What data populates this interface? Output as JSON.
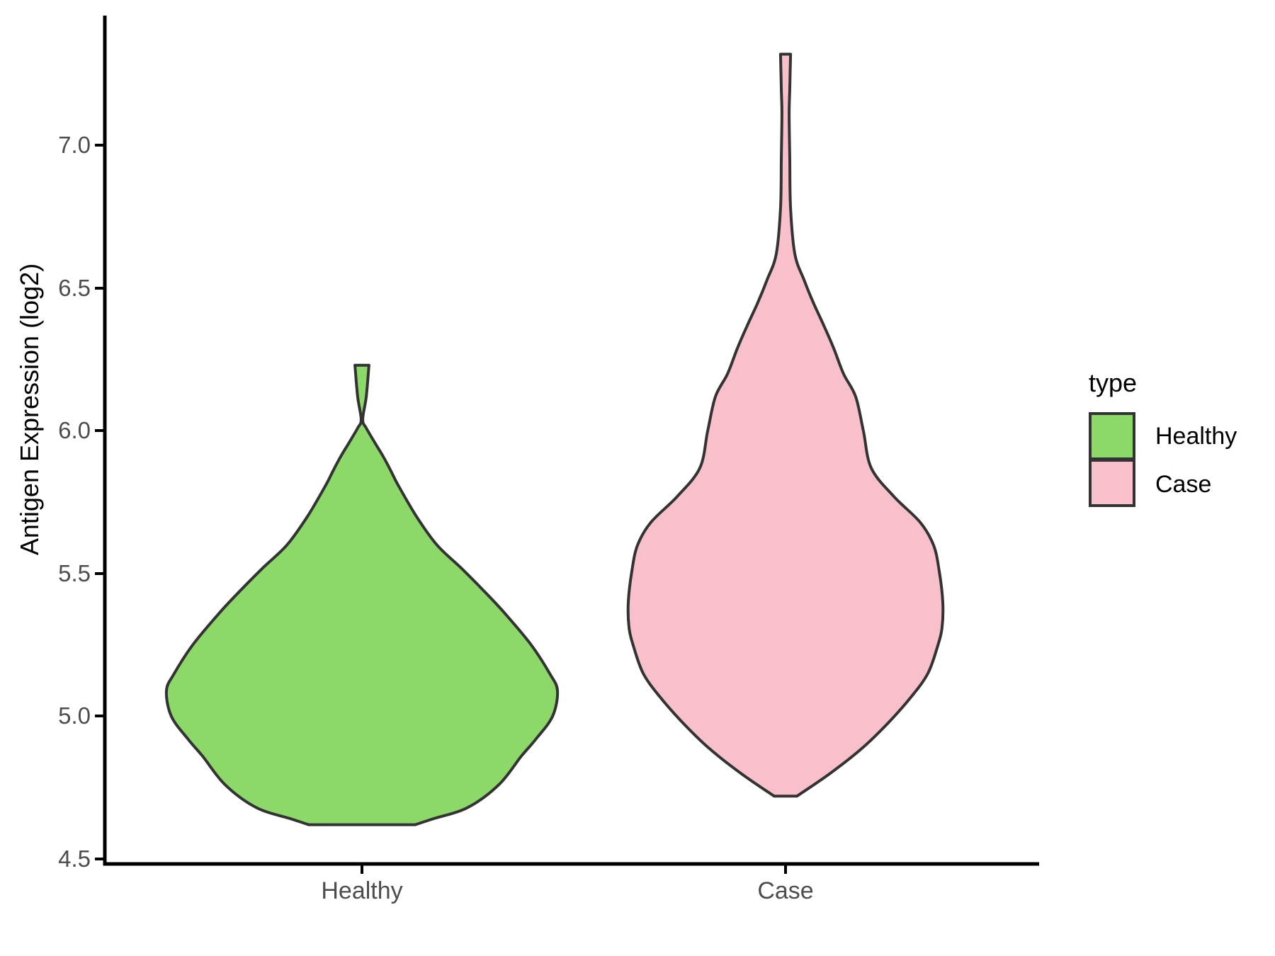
{
  "axes": {
    "y_tick_labels": [
      "7.0",
      "6.5",
      "6.0",
      "5.5",
      "5.0",
      "4.5"
    ],
    "x_tick_labels": [
      "Healthy",
      "Case"
    ],
    "y_title": "Antigen Expression (log2)",
    "text_color": "#4d4d4d",
    "axis_line_color": "#000000"
  },
  "legend": {
    "title": "type",
    "entries": [
      {
        "label": "Healthy",
        "color": "#8CD969"
      },
      {
        "label": "Case",
        "color": "#F8C0CB"
      }
    ]
  },
  "chart_data": {
    "type": "violin",
    "title": "",
    "xlabel": "",
    "ylabel": "Antigen Expression (log2)",
    "categories": [
      "Healthy",
      "Case"
    ],
    "legend_title": "type",
    "legend_position": "right",
    "ylim": [
      4.48,
      7.46
    ],
    "y_axis_ticks": [
      4.5,
      5.0,
      5.5,
      6.0,
      6.5,
      7.0
    ],
    "grid": false,
    "series": [
      {
        "name": "Healthy",
        "fill": "#8CD969",
        "outline": "#333333",
        "min": 4.62,
        "max": 6.23,
        "mode": 5.09,
        "profile": [
          [
            6.23,
            0.036
          ],
          [
            6.12,
            0.022
          ],
          [
            6.04,
            0.004
          ],
          [
            6.01,
            0.022
          ],
          [
            5.96,
            0.065
          ],
          [
            5.91,
            0.109
          ],
          [
            5.86,
            0.148
          ],
          [
            5.81,
            0.185
          ],
          [
            5.7,
            0.279
          ],
          [
            5.6,
            0.384
          ],
          [
            5.52,
            0.507
          ],
          [
            5.44,
            0.623
          ],
          [
            5.36,
            0.732
          ],
          [
            5.25,
            0.866
          ],
          [
            5.15,
            0.96
          ],
          [
            5.09,
            1.0
          ],
          [
            5.0,
            0.975
          ],
          [
            4.92,
            0.89
          ],
          [
            4.86,
            0.815
          ],
          [
            4.76,
            0.7
          ],
          [
            4.68,
            0.54
          ],
          [
            4.64,
            0.36
          ],
          [
            4.62,
            0.272
          ]
        ]
      },
      {
        "name": "Case",
        "fill": "#F8C0CB",
        "outline": "#333333",
        "min": 4.72,
        "max": 7.32,
        "mode": 5.4,
        "profile": [
          [
            7.32,
            0.032
          ],
          [
            7.2,
            0.027
          ],
          [
            7.11,
            0.023
          ],
          [
            6.95,
            0.027
          ],
          [
            6.78,
            0.032
          ],
          [
            6.62,
            0.059
          ],
          [
            6.53,
            0.117
          ],
          [
            6.45,
            0.176
          ],
          [
            6.37,
            0.243
          ],
          [
            6.29,
            0.306
          ],
          [
            6.2,
            0.369
          ],
          [
            6.12,
            0.446
          ],
          [
            6.0,
            0.495
          ],
          [
            5.87,
            0.545
          ],
          [
            5.77,
            0.689
          ],
          [
            5.68,
            0.856
          ],
          [
            5.6,
            0.941
          ],
          [
            5.51,
            0.977
          ],
          [
            5.4,
            1.0
          ],
          [
            5.31,
            0.995
          ],
          [
            5.24,
            0.964
          ],
          [
            5.15,
            0.905
          ],
          [
            5.07,
            0.802
          ],
          [
            4.98,
            0.658
          ],
          [
            4.89,
            0.491
          ],
          [
            4.8,
            0.284
          ],
          [
            4.72,
            0.072
          ]
        ]
      }
    ]
  }
}
